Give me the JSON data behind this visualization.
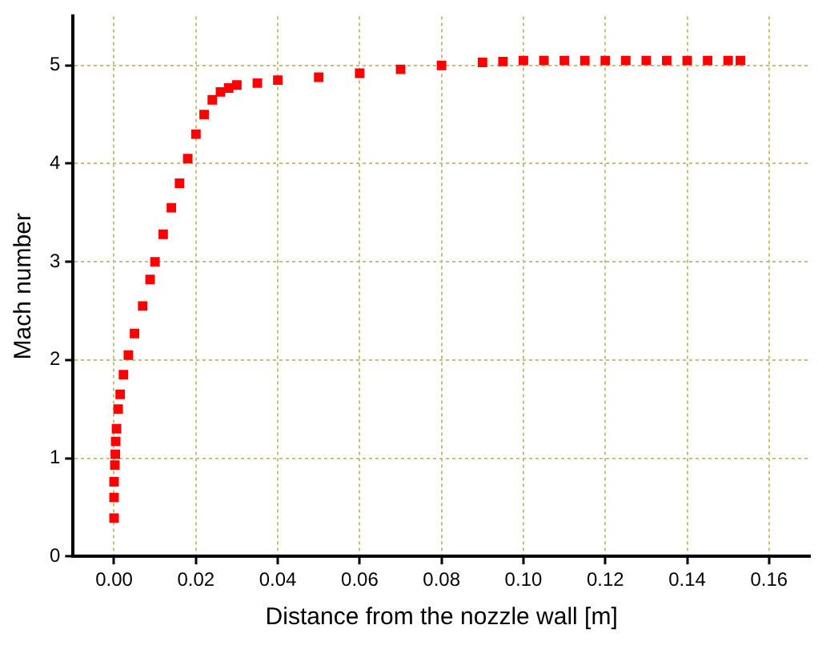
{
  "chart_data": {
    "type": "scatter",
    "xlabel": "Distance from the nozzle wall [m]",
    "ylabel": "Mach number",
    "marker": "square",
    "grid": true,
    "legend": false,
    "xlim": [
      -0.01,
      0.17
    ],
    "ylim": [
      0,
      5.5
    ],
    "xticks": [
      {
        "value": 0,
        "label": "0.00"
      },
      {
        "value": 0.02,
        "label": "0.02"
      },
      {
        "value": 0.04,
        "label": "0.04"
      },
      {
        "value": 0.06,
        "label": "0.06"
      },
      {
        "value": 0.08,
        "label": "0.08"
      },
      {
        "value": 0.1,
        "label": "0.10"
      },
      {
        "value": 0.12,
        "label": "0.12"
      },
      {
        "value": 0.14,
        "label": "0.14"
      },
      {
        "value": 0.16,
        "label": "0.16"
      }
    ],
    "yticks": [
      0,
      1,
      2,
      3,
      4,
      5
    ],
    "series": [
      {
        "color": "#ff0000",
        "x": [
          0,
          0,
          0,
          0.0002,
          0.0003,
          0.0004,
          0.0006,
          0.001,
          0.0015,
          0.0023,
          0.0035,
          0.005,
          0.007,
          0.0088,
          0.01,
          0.012,
          0.014,
          0.016,
          0.018,
          0.02,
          0.022,
          0.024,
          0.026,
          0.028,
          0.03,
          0.035,
          0.04,
          0.05,
          0.06,
          0.07,
          0.08,
          0.09,
          0.095,
          0.1,
          0.105,
          0.11,
          0.115,
          0.12,
          0.125,
          0.13,
          0.135,
          0.14,
          0.145,
          0.15,
          0.153
        ],
        "values": [
          0.39,
          0.6,
          0.76,
          0.93,
          1.04,
          1.17,
          1.3,
          1.5,
          1.65,
          1.85,
          2.05,
          2.27,
          2.55,
          2.82,
          3.0,
          3.28,
          3.55,
          3.8,
          4.05,
          4.3,
          4.5,
          4.65,
          4.73,
          4.77,
          4.8,
          4.82,
          4.85,
          4.88,
          4.92,
          4.96,
          5.0,
          5.03,
          5.04,
          5.05,
          5.05,
          5.05,
          5.05,
          5.05,
          5.05,
          5.05,
          5.05,
          5.05,
          5.05,
          5.05,
          5.05
        ]
      }
    ]
  }
}
